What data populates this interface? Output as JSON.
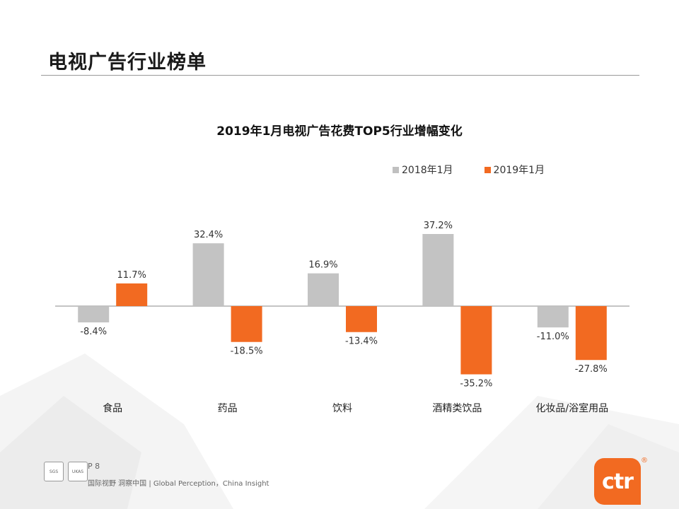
{
  "page": {
    "title": "电视广告行业榜单",
    "page_number": "P 8",
    "tagline": "国际视野 洞察中国 | Global Perception，China Insight",
    "logo_text": "ctr",
    "logo_mark": "®",
    "badge1_text": "SGS",
    "badge2_text": "UKAS"
  },
  "chart_data": {
    "type": "bar",
    "title": "2019年1月电视广告花费TOP5行业增幅变化",
    "categories": [
      "食品",
      "药品",
      "饮料",
      "酒精类饮品",
      "化妆品/浴室用品"
    ],
    "series": [
      {
        "name": "2018年1月",
        "values": [
          -8.4,
          32.4,
          16.9,
          37.2,
          -11.0
        ],
        "color": "#c0c0c0"
      },
      {
        "name": "2019年1月",
        "values": [
          11.7,
          -18.5,
          -13.4,
          -35.2,
          -27.8
        ],
        "color": "#f26a21"
      }
    ],
    "value_labels": [
      [
        "-8.4%",
        "32.4%",
        "16.9%",
        "37.2%",
        "-11.0%"
      ],
      [
        "11.7%",
        "-18.5%",
        "-13.4%",
        "-35.2%",
        "-27.8%"
      ]
    ],
    "unit": "%",
    "ylim": [
      -40,
      40
    ],
    "grid": false,
    "legend_position": "top-right"
  }
}
